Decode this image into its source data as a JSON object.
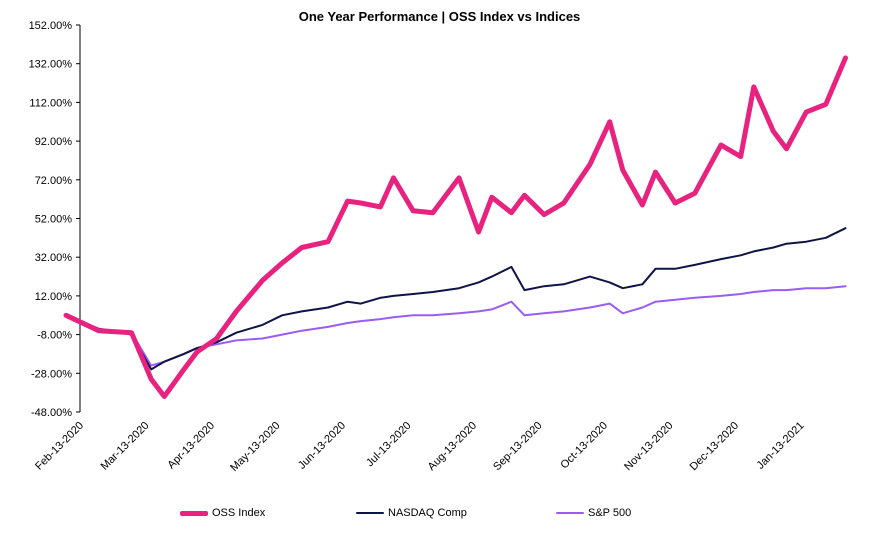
{
  "chart_data": {
    "type": "line",
    "title": "One Year Performance | OSS Index vs Indices",
    "xlabel": "",
    "ylabel": "",
    "ylim": [
      -48,
      152
    ],
    "yticks": [
      "152.00%",
      "132.00%",
      "112.00%",
      "92.00%",
      "72.00%",
      "52.00%",
      "32.00%",
      "12.00%",
      "-8.00%",
      "-28.00%",
      "-48.00%"
    ],
    "xticks": [
      "Feb-13-2020",
      "Mar-13-2020",
      "Apr-13-2020",
      "May-13-2020",
      "Jun-13-2020",
      "Jul-13-2020",
      "Aug-13-2020",
      "Sep-13-2020",
      "Oct-13-2020",
      "Nov-13-2020",
      "Dec-13-2020",
      "Jan-13-2021"
    ],
    "x": [
      0,
      0.5,
      1,
      1.3,
      1.5,
      1.8,
      2,
      2.3,
      2.6,
      3,
      3.3,
      3.6,
      4,
      4.3,
      4.5,
      4.8,
      5,
      5.3,
      5.6,
      6,
      6.3,
      6.5,
      6.8,
      7,
      7.3,
      7.6,
      8,
      8.3,
      8.5,
      8.8,
      9,
      9.3,
      9.6,
      10,
      10.3,
      10.5,
      10.8,
      11,
      11.3,
      11.6,
      11.9
    ],
    "series": [
      {
        "name": "OSS Index",
        "color": "#e8237f",
        "values": [
          0,
          -8,
          -9,
          -33,
          -42,
          -28,
          -19,
          -12,
          2,
          18,
          27,
          35,
          38,
          59,
          58,
          56,
          71,
          54,
          53,
          71,
          43,
          61,
          53,
          62,
          52,
          58,
          78,
          100,
          75,
          57,
          74,
          58,
          63,
          88,
          82,
          118,
          95,
          86,
          105,
          109,
          133
        ]
      },
      {
        "name": "NASDAQ Comp",
        "color": "#0f1446",
        "values": [
          0,
          -7,
          -10,
          -28,
          -24,
          -20,
          -17,
          -14,
          -9,
          -5,
          0,
          2,
          4,
          7,
          6,
          9,
          10,
          11,
          12,
          14,
          17,
          20,
          25,
          13,
          15,
          16,
          20,
          17,
          14,
          16,
          24,
          24,
          26,
          29,
          31,
          33,
          35,
          37,
          38,
          40,
          45
        ]
      },
      {
        "name": "S&P 500",
        "color": "#9b5cf5",
        "values": [
          0,
          -7,
          -9,
          -26,
          -24,
          -20,
          -17,
          -15,
          -13,
          -12,
          -10,
          -8,
          -6,
          -4,
          -3,
          -2,
          -1,
          0,
          0,
          1,
          2,
          3,
          7,
          0,
          1,
          2,
          4,
          6,
          1,
          4,
          7,
          8,
          9,
          10,
          11,
          12,
          13,
          13,
          14,
          14,
          15
        ]
      }
    ],
    "legend": "bottom",
    "grid": false
  }
}
